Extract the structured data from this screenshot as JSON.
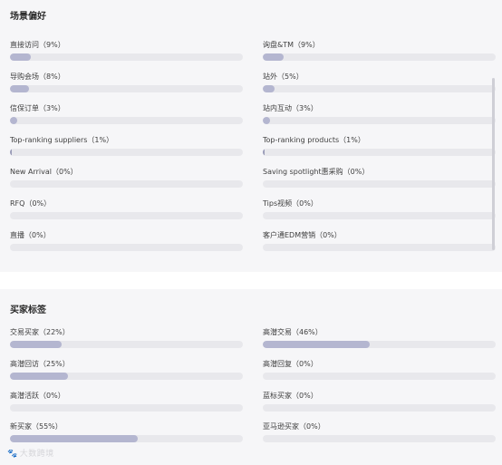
{
  "scene_section": {
    "title": "场景偏好",
    "items": [
      {
        "label": "直接访问（9%）",
        "percent": 9
      },
      {
        "label": "询盘&TM（9%）",
        "percent": 9
      },
      {
        "label": "导购会场（8%）",
        "percent": 8
      },
      {
        "label": "站外（5%）",
        "percent": 5
      },
      {
        "label": "信保订单（3%）",
        "percent": 3
      },
      {
        "label": "站内互动（3%）",
        "percent": 3
      },
      {
        "label": "Top-ranking suppliers（1%）",
        "percent": 1
      },
      {
        "label": "Top-ranking products（1%）",
        "percent": 1
      },
      {
        "label": "New Arrival（0%）",
        "percent": 0
      },
      {
        "label": "Saving spotlight惠采购（0%）",
        "percent": 0
      },
      {
        "label": "RFQ（0%）",
        "percent": 0
      },
      {
        "label": "Tips视频（0%）",
        "percent": 0
      },
      {
        "label": "直播（0%）",
        "percent": 0
      },
      {
        "label": "客户通EDM营销（0%）",
        "percent": 0
      }
    ]
  },
  "buyer_section": {
    "title": "买家标签",
    "items": [
      {
        "label": "交易买家（22%）",
        "percent": 22
      },
      {
        "label": "高潜交易（46%）",
        "percent": 46
      },
      {
        "label": "高潜回访（25%）",
        "percent": 25
      },
      {
        "label": "高潜回复（0%）",
        "percent": 0
      },
      {
        "label": "高潜活跃（0%）",
        "percent": 0
      },
      {
        "label": "蓝标买家（0%）",
        "percent": 0
      },
      {
        "label": "新买家（55%）",
        "percent": 55
      },
      {
        "label": "亚马逊买家（0%）",
        "percent": 0
      }
    ]
  },
  "watermark": {
    "icon": "paw-icon",
    "text": "大数跨境"
  },
  "colors": {
    "bar_fill": "#b4b6d0",
    "bar_track": "#e8e8ec",
    "background": "#f6f6f8"
  }
}
